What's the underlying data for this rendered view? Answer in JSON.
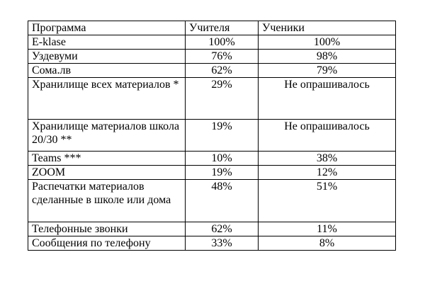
{
  "table": {
    "headers": [
      "Программа",
      "Учителя",
      "Ученики"
    ],
    "rows": [
      {
        "program": "E-klase",
        "teachers": "100%",
        "students": "100%"
      },
      {
        "program": "Уздевуми",
        "teachers": "76%",
        "students": "98%"
      },
      {
        "program": "Сома.лв",
        "teachers": "62%",
        "students": "79%"
      },
      {
        "program": "Хранилище всех материалов *",
        "teachers": "29%",
        "students": "Не опрашивалось"
      },
      {
        "program": "Хранилище материалов школа 20/30 **",
        "teachers": "19%",
        "students": "Не опрашивалось"
      },
      {
        "program": "Teams ***",
        "teachers": "10%",
        "students": "38%"
      },
      {
        "program": "ZOOM",
        "teachers": "19%",
        "students": "12%"
      },
      {
        "program": "Распечатки материалов сделанные в школе или дома",
        "teachers": "48%",
        "students": "51%"
      },
      {
        "program": "Телефонные звонки",
        "teachers": "62%",
        "students": "11%"
      },
      {
        "program": "Сообщения по телефону",
        "teachers": "33%",
        "students": "8%"
      }
    ]
  }
}
